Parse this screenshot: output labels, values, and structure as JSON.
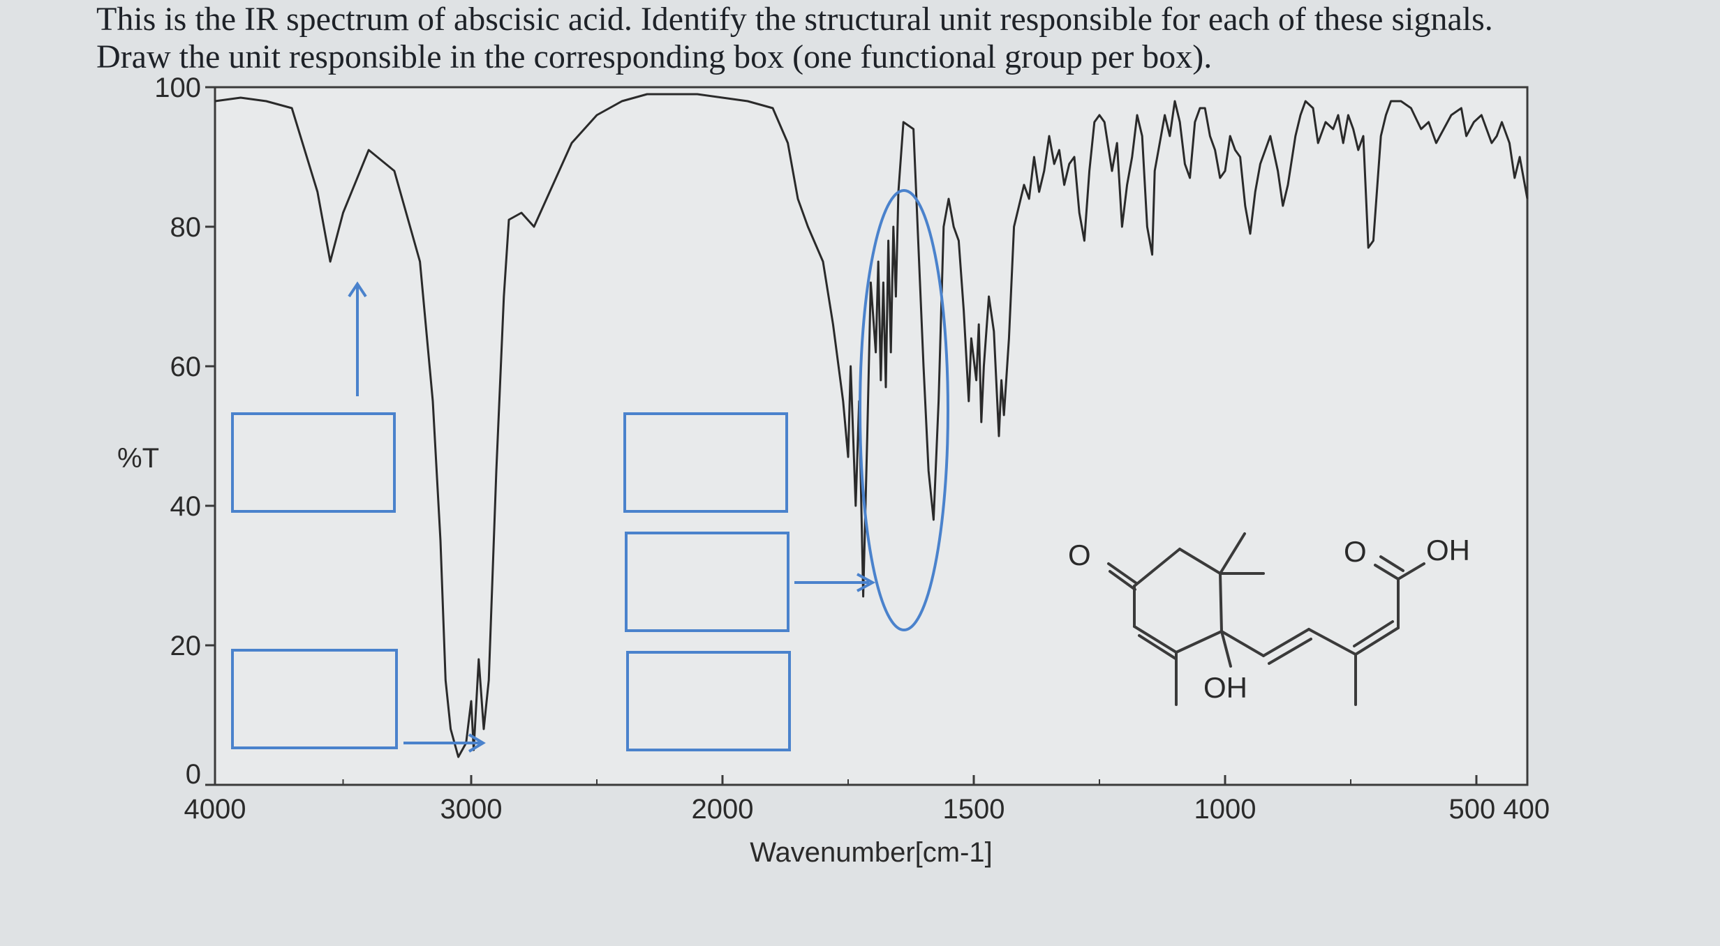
{
  "question": {
    "line1": "This is the IR spectrum of abscisic acid. Identify the structural unit responsible for each of these signals.",
    "line2": "Draw the unit responsible in the corresponding box (one functional group per box)."
  },
  "colors": {
    "background": "#dfe2e4",
    "plot_background": "#e8eaeb",
    "spectrum": "#2a2a2a",
    "annotation_blue": "#4a82cc"
  },
  "chart_data": {
    "type": "line",
    "title": "",
    "xlabel": "Wavenumber[cm-1]",
    "ylabel": "%T",
    "xlim": [
      4000,
      400
    ],
    "x_scale": "piecewise: 4000-2000 compressed, 2000-400 expanded",
    "ylim": [
      0,
      100
    ],
    "grid": false,
    "x_ticks": [
      "4000",
      "3000",
      "2000",
      "1500",
      "1000",
      "500 400"
    ],
    "y_ticks": [
      "0",
      "20",
      "40",
      "60",
      "80",
      "100"
    ],
    "series": [
      {
        "points": [
          [
            4000,
            98
          ],
          [
            3900,
            98.5
          ],
          [
            3800,
            98
          ],
          [
            3700,
            97
          ],
          [
            3600,
            85
          ],
          [
            3550,
            75
          ],
          [
            3500,
            82
          ],
          [
            3400,
            91
          ],
          [
            3300,
            88
          ],
          [
            3200,
            75
          ],
          [
            3150,
            55
          ],
          [
            3120,
            35
          ],
          [
            3100,
            15
          ],
          [
            3080,
            8
          ],
          [
            3050,
            4
          ],
          [
            3020,
            6
          ],
          [
            3000,
            12
          ],
          [
            2990,
            5
          ],
          [
            2970,
            18
          ],
          [
            2950,
            8
          ],
          [
            2930,
            15
          ],
          [
            2900,
            45
          ],
          [
            2870,
            70
          ],
          [
            2850,
            81
          ],
          [
            2800,
            82
          ],
          [
            2750,
            80
          ],
          [
            2700,
            84
          ],
          [
            2600,
            92
          ],
          [
            2500,
            96
          ],
          [
            2400,
            98
          ],
          [
            2300,
            99
          ],
          [
            2200,
            99
          ],
          [
            2100,
            99
          ],
          [
            2000,
            98.5
          ],
          [
            1950,
            98
          ],
          [
            1900,
            97
          ],
          [
            1870,
            92
          ],
          [
            1850,
            84
          ],
          [
            1830,
            80
          ],
          [
            1800,
            75
          ],
          [
            1780,
            66
          ],
          [
            1760,
            55
          ],
          [
            1750,
            47
          ],
          [
            1745,
            60
          ],
          [
            1735,
            40
          ],
          [
            1728,
            55
          ],
          [
            1720,
            27
          ],
          [
            1712,
            50
          ],
          [
            1705,
            72
          ],
          [
            1695,
            62
          ],
          [
            1690,
            75
          ],
          [
            1685,
            58
          ],
          [
            1680,
            72
          ],
          [
            1675,
            57
          ],
          [
            1670,
            78
          ],
          [
            1665,
            62
          ],
          [
            1660,
            80
          ],
          [
            1655,
            70
          ],
          [
            1650,
            85
          ],
          [
            1640,
            95
          ],
          [
            1620,
            94
          ],
          [
            1600,
            60
          ],
          [
            1590,
            45
          ],
          [
            1580,
            38
          ],
          [
            1570,
            55
          ],
          [
            1560,
            80
          ],
          [
            1550,
            84
          ],
          [
            1540,
            80
          ],
          [
            1530,
            78
          ],
          [
            1520,
            68
          ],
          [
            1510,
            55
          ],
          [
            1505,
            64
          ],
          [
            1495,
            58
          ],
          [
            1490,
            66
          ],
          [
            1485,
            52
          ],
          [
            1480,
            60
          ],
          [
            1470,
            70
          ],
          [
            1460,
            65
          ],
          [
            1450,
            50
          ],
          [
            1445,
            58
          ],
          [
            1440,
            53
          ],
          [
            1430,
            64
          ],
          [
            1420,
            80
          ],
          [
            1400,
            86
          ],
          [
            1390,
            84
          ],
          [
            1380,
            90
          ],
          [
            1370,
            85
          ],
          [
            1360,
            88
          ],
          [
            1350,
            93
          ],
          [
            1340,
            89
          ],
          [
            1330,
            91
          ],
          [
            1320,
            86
          ],
          [
            1310,
            89
          ],
          [
            1300,
            90
          ],
          [
            1290,
            82
          ],
          [
            1280,
            78
          ],
          [
            1270,
            88
          ],
          [
            1260,
            95
          ],
          [
            1250,
            96
          ],
          [
            1240,
            95
          ],
          [
            1225,
            88
          ],
          [
            1215,
            92
          ],
          [
            1205,
            80
          ],
          [
            1195,
            86
          ],
          [
            1185,
            90
          ],
          [
            1175,
            96
          ],
          [
            1165,
            93
          ],
          [
            1155,
            80
          ],
          [
            1145,
            76
          ],
          [
            1140,
            88
          ],
          [
            1130,
            92
          ],
          [
            1120,
            96
          ],
          [
            1110,
            93
          ],
          [
            1100,
            98
          ],
          [
            1090,
            95
          ],
          [
            1080,
            89
          ],
          [
            1070,
            87
          ],
          [
            1060,
            95
          ],
          [
            1050,
            97
          ],
          [
            1040,
            97
          ],
          [
            1030,
            93
          ],
          [
            1020,
            91
          ],
          [
            1010,
            87
          ],
          [
            1000,
            88
          ],
          [
            990,
            93
          ],
          [
            980,
            91
          ],
          [
            970,
            90
          ],
          [
            960,
            83
          ],
          [
            950,
            79
          ],
          [
            940,
            85
          ],
          [
            930,
            89
          ],
          [
            920,
            91
          ],
          [
            910,
            93
          ],
          [
            895,
            88
          ],
          [
            885,
            83
          ],
          [
            875,
            86
          ],
          [
            860,
            93
          ],
          [
            850,
            96
          ],
          [
            840,
            98
          ],
          [
            825,
            97
          ],
          [
            815,
            92
          ],
          [
            800,
            95
          ],
          [
            785,
            94
          ],
          [
            775,
            96
          ],
          [
            765,
            92
          ],
          [
            755,
            96
          ],
          [
            745,
            94
          ],
          [
            735,
            91
          ],
          [
            725,
            93
          ],
          [
            715,
            77
          ],
          [
            705,
            78
          ],
          [
            690,
            93
          ],
          [
            680,
            96
          ],
          [
            670,
            98
          ],
          [
            650,
            98
          ],
          [
            630,
            97
          ],
          [
            610,
            94
          ],
          [
            595,
            95
          ],
          [
            580,
            92
          ],
          [
            565,
            94
          ],
          [
            550,
            96
          ],
          [
            530,
            97
          ],
          [
            520,
            93
          ],
          [
            505,
            95
          ],
          [
            490,
            96
          ],
          [
            470,
            92
          ],
          [
            460,
            93
          ],
          [
            450,
            95
          ],
          [
            435,
            92
          ],
          [
            425,
            87
          ],
          [
            415,
            90
          ],
          [
            400,
            84
          ]
        ]
      }
    ]
  },
  "annotations": {
    "molecule_labels": {
      "ketone_o": "O",
      "acid_o": "O",
      "acid_oh": "OH",
      "ring_oh": "OH"
    }
  }
}
